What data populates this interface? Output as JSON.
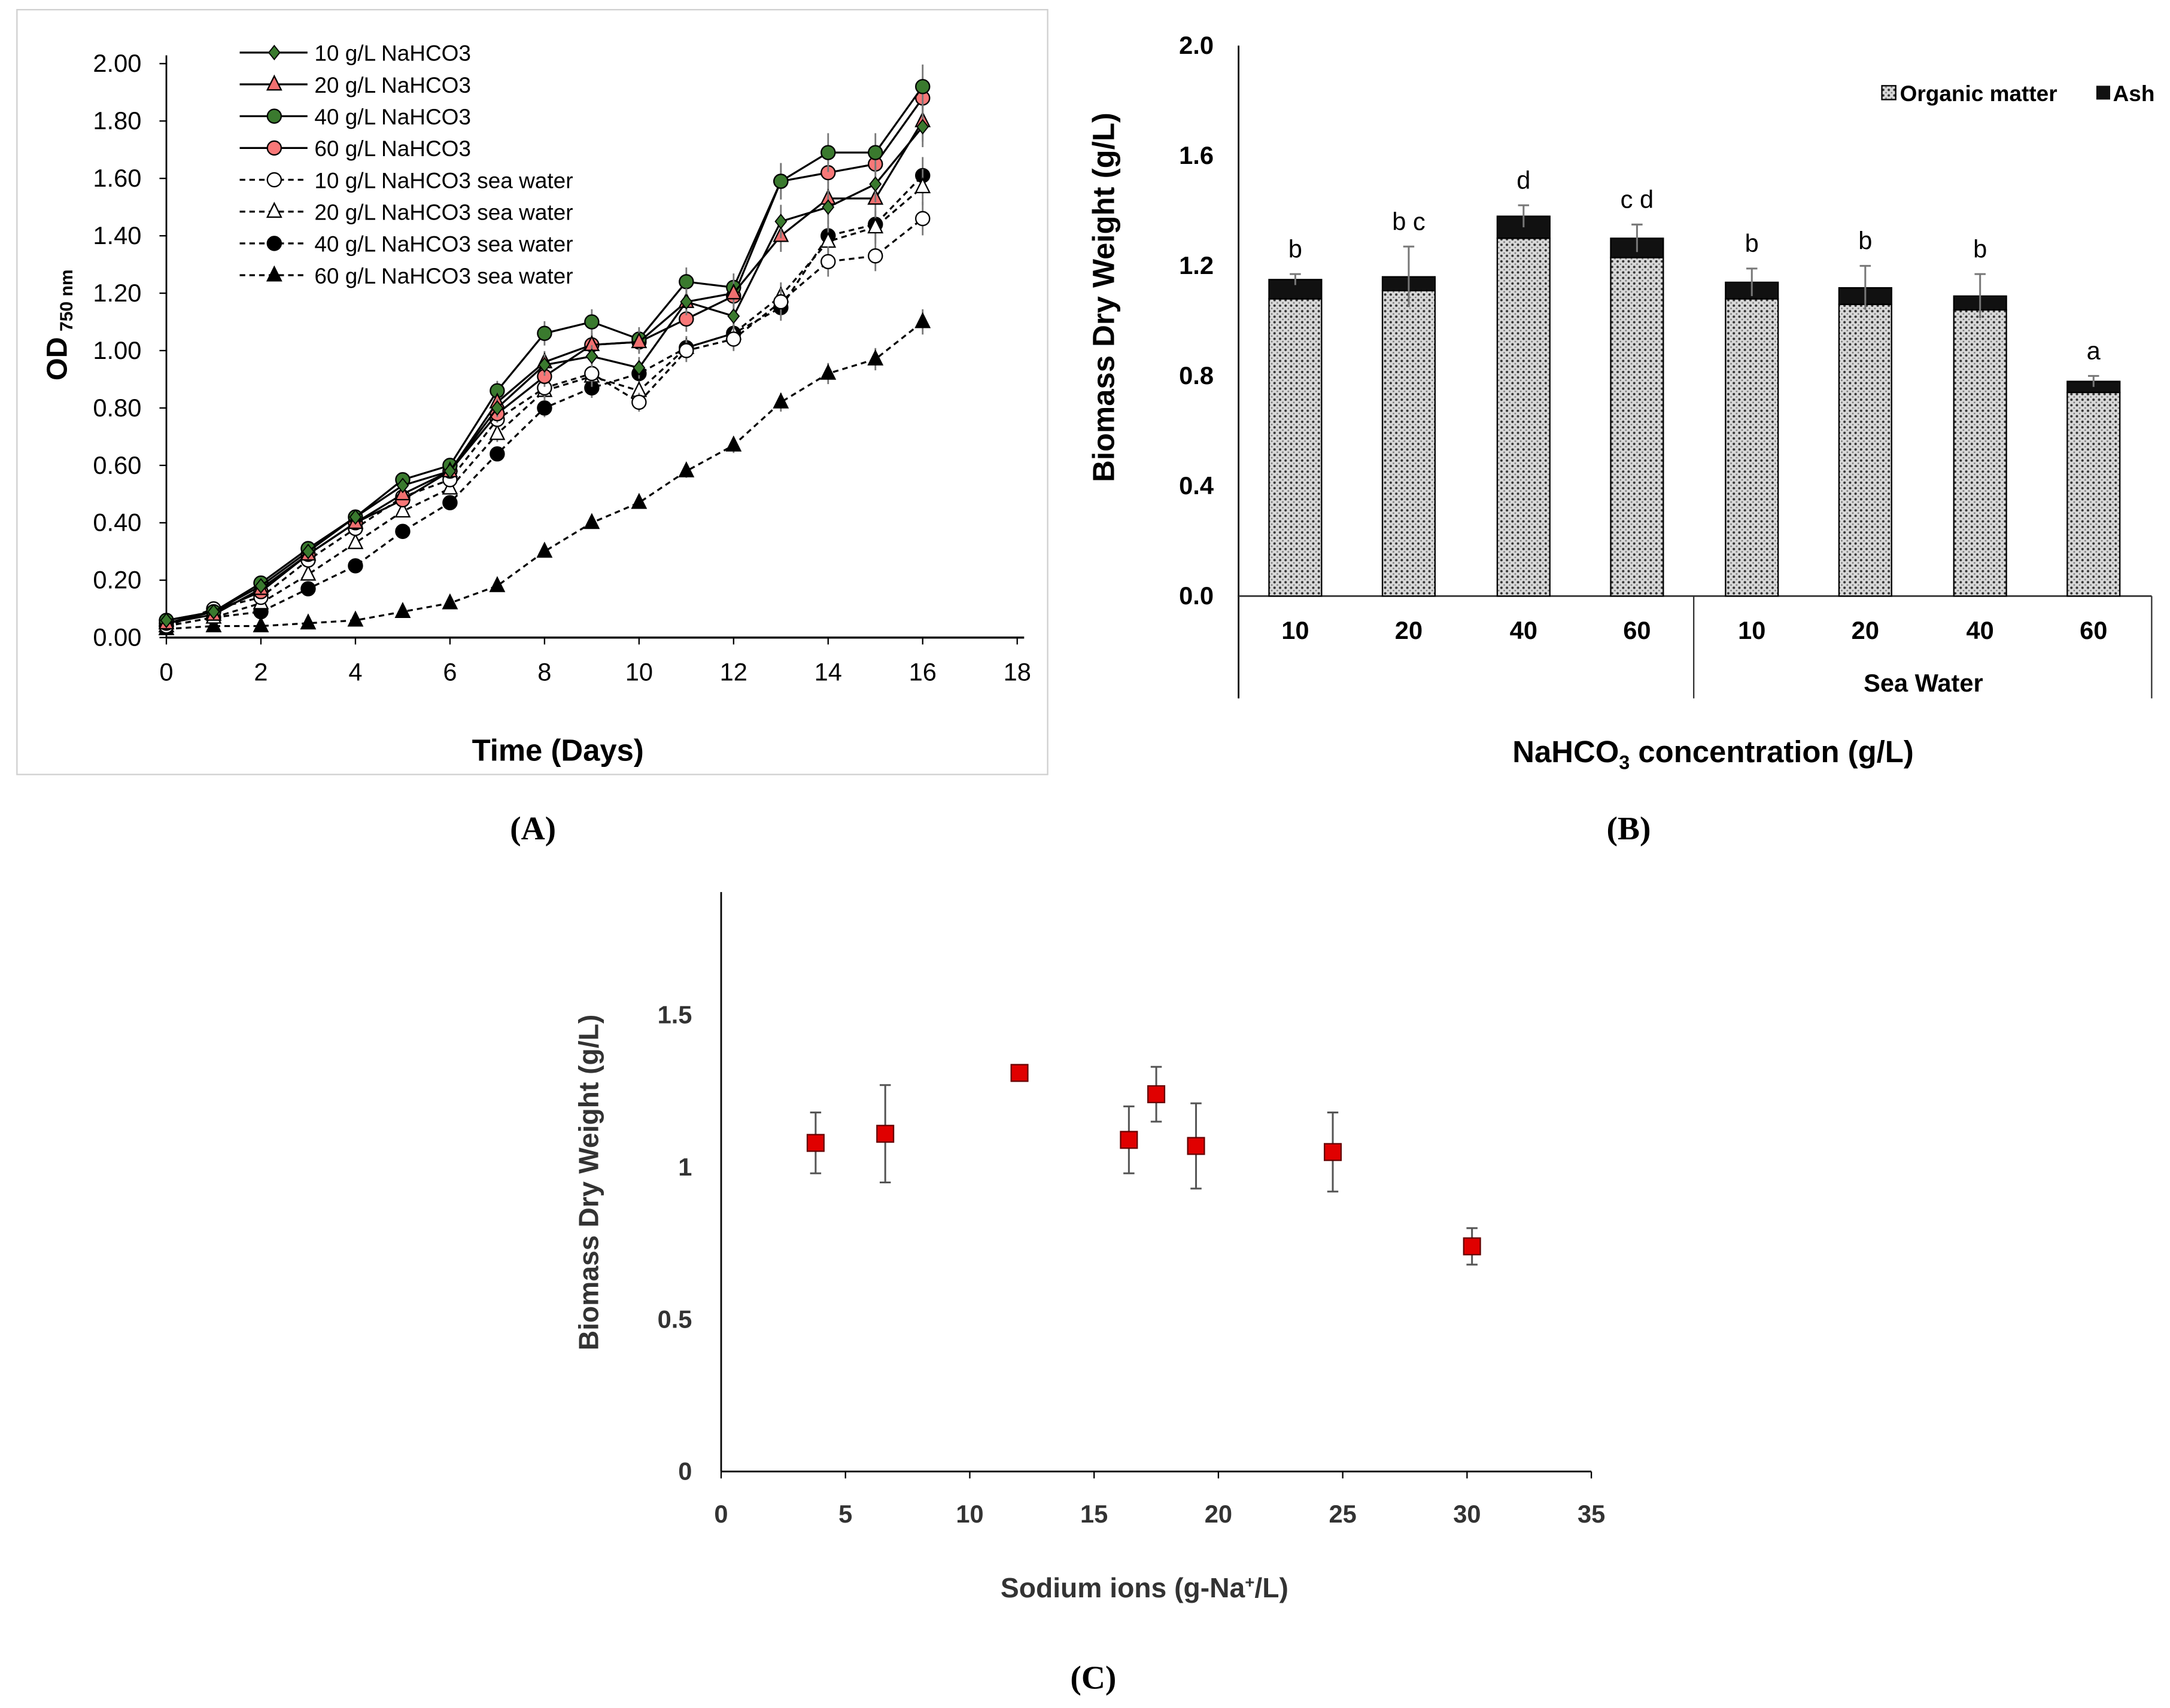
{
  "chart_data": [
    {
      "panel_label": "(A)",
      "type": "line",
      "xlabel": "Time (Days)",
      "ylabel": "OD",
      "ylabel_sub": "750 nm",
      "xlim": [
        0,
        18
      ],
      "ylim": [
        0,
        2.0
      ],
      "xticks": [
        "0",
        "2",
        "4",
        "6",
        "8",
        "10",
        "12",
        "14",
        "16",
        "18"
      ],
      "yticks": [
        "0.00",
        "0.20",
        "0.40",
        "0.60",
        "0.80",
        "1.00",
        "1.20",
        "1.40",
        "1.60",
        "1.80",
        "2.00"
      ],
      "legend_position": "top-left",
      "x": [
        0,
        1,
        2,
        3,
        4,
        5,
        6,
        7,
        8,
        9,
        10,
        11,
        12,
        13,
        14,
        15,
        16
      ],
      "series": [
        {
          "name": "10 g/L NaHCO3",
          "marker": "diamond",
          "fill": "#3a7a2e",
          "dash": false,
          "values": [
            0.06,
            0.09,
            0.18,
            0.3,
            0.42,
            0.53,
            0.58,
            0.8,
            0.95,
            0.98,
            0.94,
            1.17,
            1.12,
            1.45,
            1.5,
            1.58,
            1.78
          ]
        },
        {
          "name": "20 g/L NaHCO3",
          "marker": "triangle",
          "fill": "#f07070",
          "dash": false,
          "values": [
            0.05,
            0.08,
            0.17,
            0.29,
            0.4,
            0.5,
            0.58,
            0.82,
            0.96,
            1.02,
            1.03,
            1.17,
            1.2,
            1.4,
            1.53,
            1.53,
            1.8
          ]
        },
        {
          "name": "40 g/L NaHCO3",
          "marker": "circle",
          "fill": "#3a7a2e",
          "dash": false,
          "values": [
            0.06,
            0.09,
            0.19,
            0.31,
            0.42,
            0.55,
            0.6,
            0.86,
            1.06,
            1.1,
            1.04,
            1.24,
            1.22,
            1.59,
            1.69,
            1.69,
            1.92
          ]
        },
        {
          "name": "60 g/L NaHCO3",
          "marker": "circle",
          "fill": "#f87878",
          "dash": false,
          "values": [
            0.05,
            0.09,
            0.16,
            0.29,
            0.4,
            0.48,
            0.58,
            0.78,
            0.91,
            1.02,
            1.03,
            1.11,
            1.19,
            1.59,
            1.62,
            1.65,
            1.88
          ]
        },
        {
          "name": "10 g/L NaHCO3 sea water",
          "marker": "circle",
          "fill": "#ffffff",
          "dash": true,
          "values": [
            0.04,
            0.1,
            0.14,
            0.27,
            0.38,
            0.49,
            0.55,
            0.76,
            0.87,
            0.92,
            0.82,
            1.0,
            1.04,
            1.17,
            1.31,
            1.33,
            1.46
          ]
        },
        {
          "name": "20 g/L NaHCO3 sea water",
          "marker": "triangle",
          "fill": "#ffffff",
          "dash": true,
          "values": [
            0.04,
            0.07,
            0.12,
            0.22,
            0.33,
            0.44,
            0.52,
            0.71,
            0.86,
            0.91,
            0.86,
            1.01,
            1.06,
            1.19,
            1.38,
            1.43,
            1.57
          ]
        },
        {
          "name": "40 g/L NaHCO3 sea water",
          "marker": "circle",
          "fill": "#000000",
          "dash": true,
          "values": [
            0.04,
            0.07,
            0.09,
            0.17,
            0.25,
            0.37,
            0.47,
            0.64,
            0.8,
            0.87,
            0.92,
            1.01,
            1.06,
            1.15,
            1.4,
            1.44,
            1.61
          ]
        },
        {
          "name": "60 g/L NaHCO3 sea water",
          "marker": "triangle",
          "fill": "#000000",
          "dash": true,
          "values": [
            0.03,
            0.04,
            0.04,
            0.05,
            0.06,
            0.09,
            0.12,
            0.18,
            0.3,
            0.4,
            0.47,
            0.58,
            0.67,
            0.82,
            0.92,
            0.97,
            1.1
          ]
        }
      ]
    },
    {
      "panel_label": "(B)",
      "type": "bar",
      "stacked": true,
      "ylabel": "Biomass Dry Weight (g/L)",
      "xlabel_main": "NaHCO",
      "xlabel_sub": "3",
      "xlabel_rest": " concentration (g/L)",
      "ylim": [
        0,
        2.0
      ],
      "yticks": [
        "0.0",
        "0.4",
        "0.8",
        "1.2",
        "1.6",
        "2.0"
      ],
      "categories": [
        "10",
        "20",
        "40",
        "60",
        "10",
        "20",
        "40",
        "60"
      ],
      "group_label": "Sea Water",
      "legend_position": "top-right",
      "series": [
        {
          "name": "Organic matter",
          "values": [
            1.08,
            1.11,
            1.3,
            1.23,
            1.08,
            1.06,
            1.04,
            0.74
          ]
        },
        {
          "name": "Ash",
          "values": [
            0.07,
            0.05,
            0.08,
            0.07,
            0.06,
            0.06,
            0.05,
            0.04
          ]
        }
      ],
      "error": [
        0.02,
        0.11,
        0.04,
        0.05,
        0.05,
        0.08,
        0.08,
        0.02
      ],
      "letters": [
        "b",
        "b c",
        "d",
        "c d",
        "b",
        "b",
        "b",
        "a"
      ]
    },
    {
      "panel_label": "(C)",
      "type": "scatter",
      "xlabel": "Sodium ions (g-Na",
      "xlabel_sup": "+",
      "xlabel_rest": "/L)",
      "ylabel": "Biomass Dry Weight (g/L)",
      "xlim": [
        0,
        35
      ],
      "ylim": [
        0,
        1.9
      ],
      "xticks": [
        "0",
        "5",
        "10",
        "15",
        "20",
        "25",
        "30",
        "35"
      ],
      "yticks": [
        "0",
        "0.5",
        "1",
        "1.5"
      ],
      "marker_color": "#e00000",
      "x": [
        3.8,
        6.6,
        12.0,
        16.4,
        17.5,
        19.1,
        24.6,
        30.2
      ],
      "y": [
        1.08,
        1.11,
        1.31,
        1.09,
        1.24,
        1.07,
        1.05,
        0.74
      ],
      "error": [
        0.1,
        0.16,
        0.02,
        0.11,
        0.09,
        0.14,
        0.13,
        0.06
      ]
    }
  ]
}
